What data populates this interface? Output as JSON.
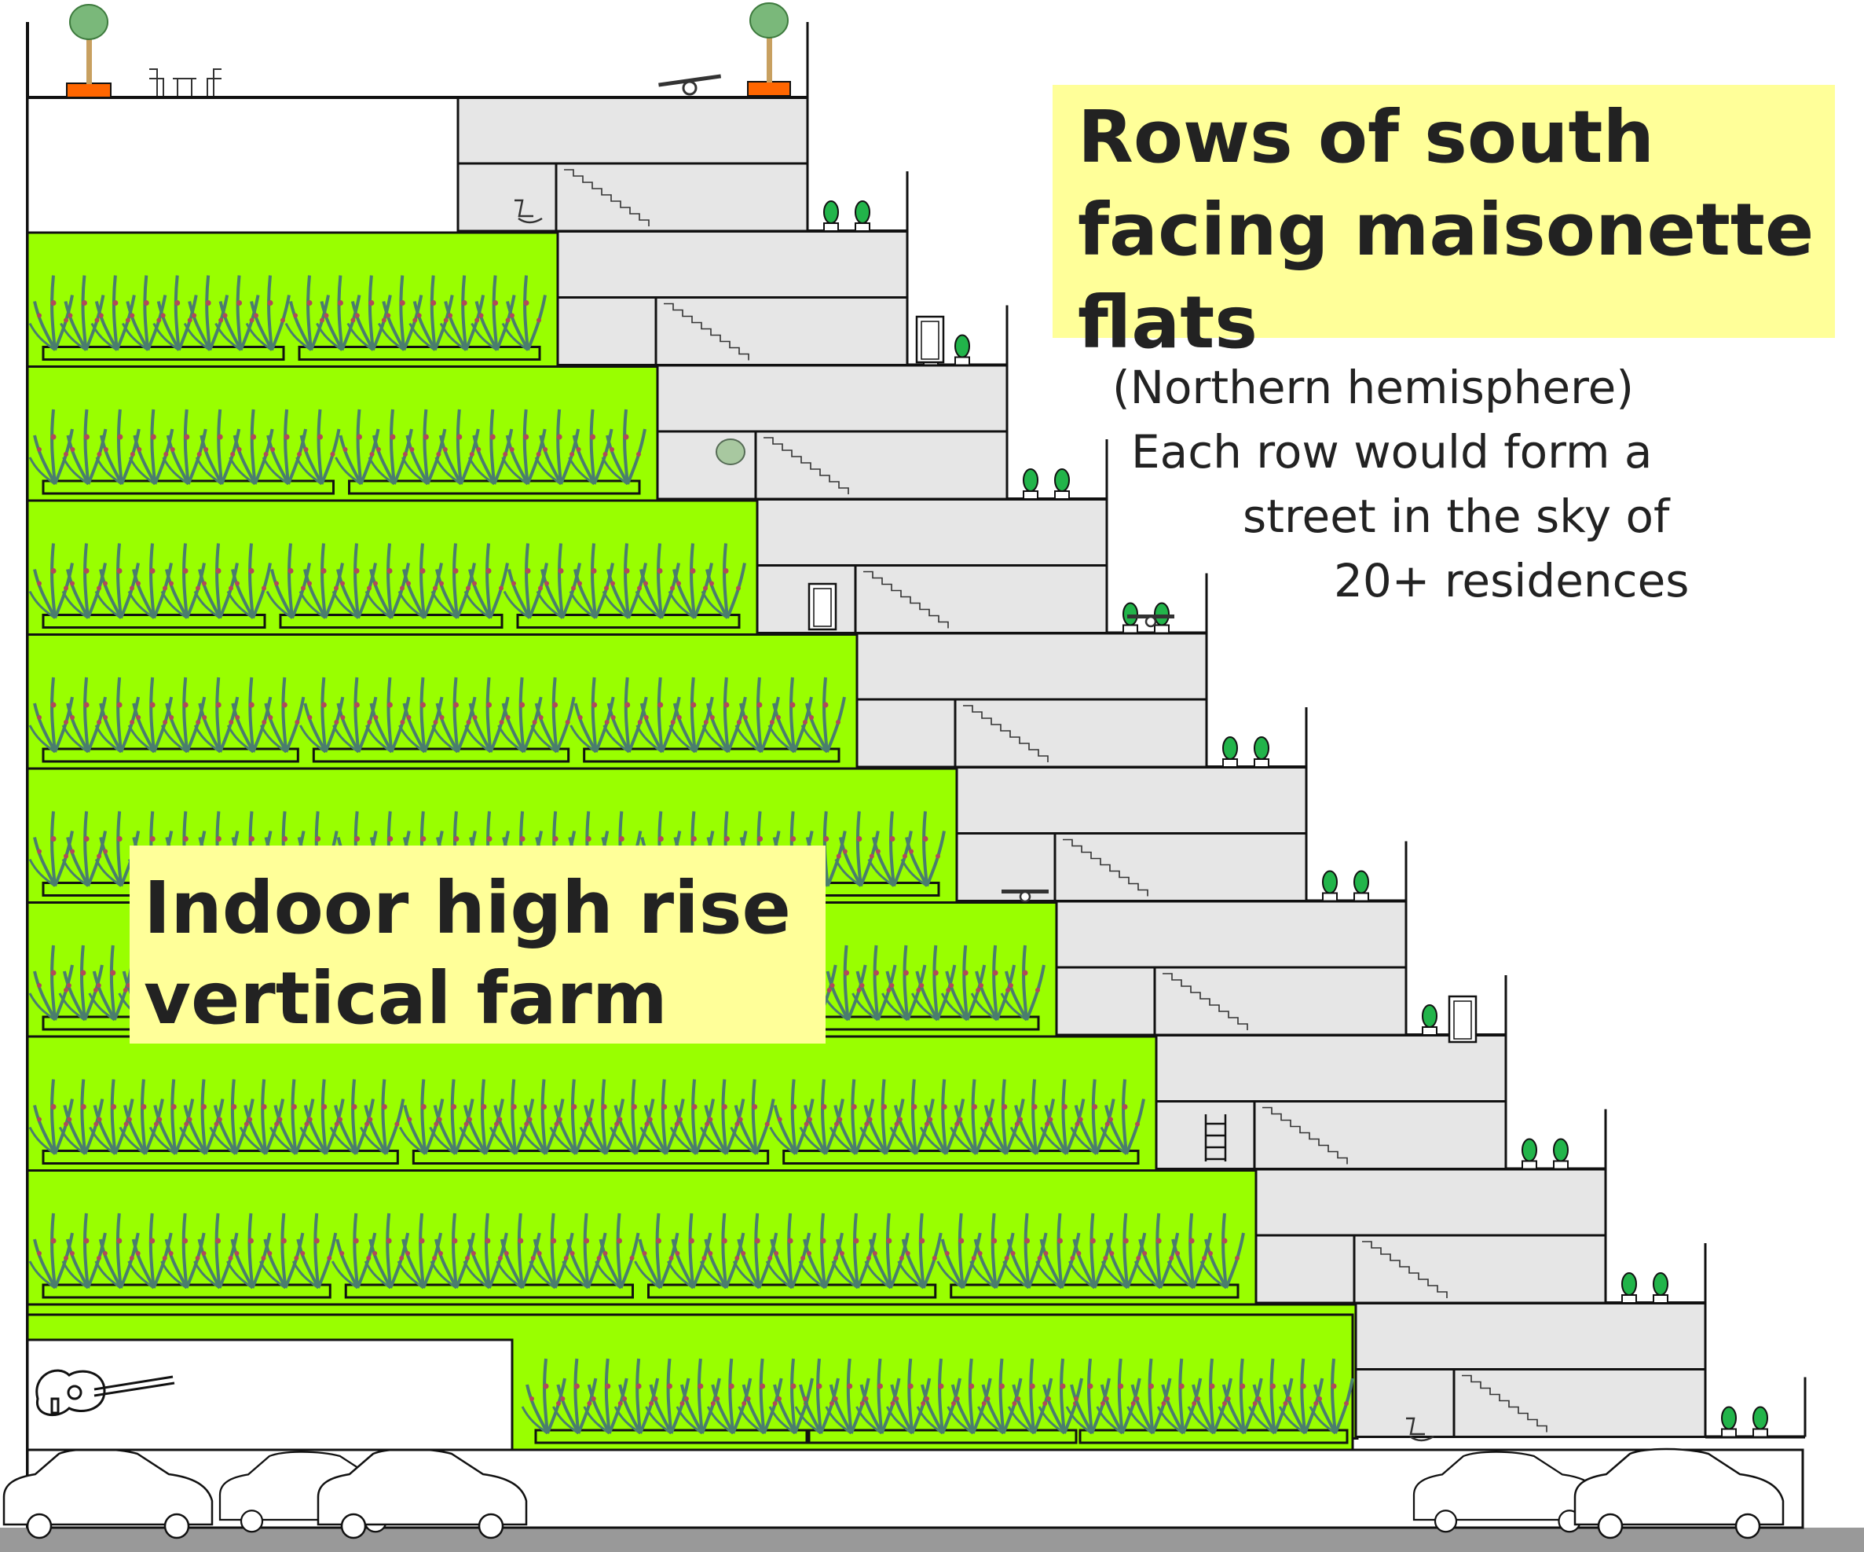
{
  "labels": {
    "flats_title": [
      "Rows of south",
      "facing maisonette",
      "flats"
    ],
    "flats_note": [
      "(Northern hemisphere)",
      "Each row would form a",
      "street in the sky of",
      "20+ residences"
    ],
    "farm_title": [
      "Indoor high rise",
      "vertical farm"
    ]
  },
  "colors": {
    "farm": "#99ff00",
    "flat": "#e6e6e6",
    "label_bg": "#ffff99",
    "ground": "#999999",
    "stem": "#4a7d6e",
    "outline": "#111111"
  },
  "icons": [
    "tree-icon",
    "seesaw-icon",
    "table-chairs-icon",
    "rocking-chair-icon",
    "potted-plant-icon",
    "door-icon",
    "ladder-icon",
    "guitar-icon",
    "car-icon",
    "hanging-basket-icon"
  ]
}
